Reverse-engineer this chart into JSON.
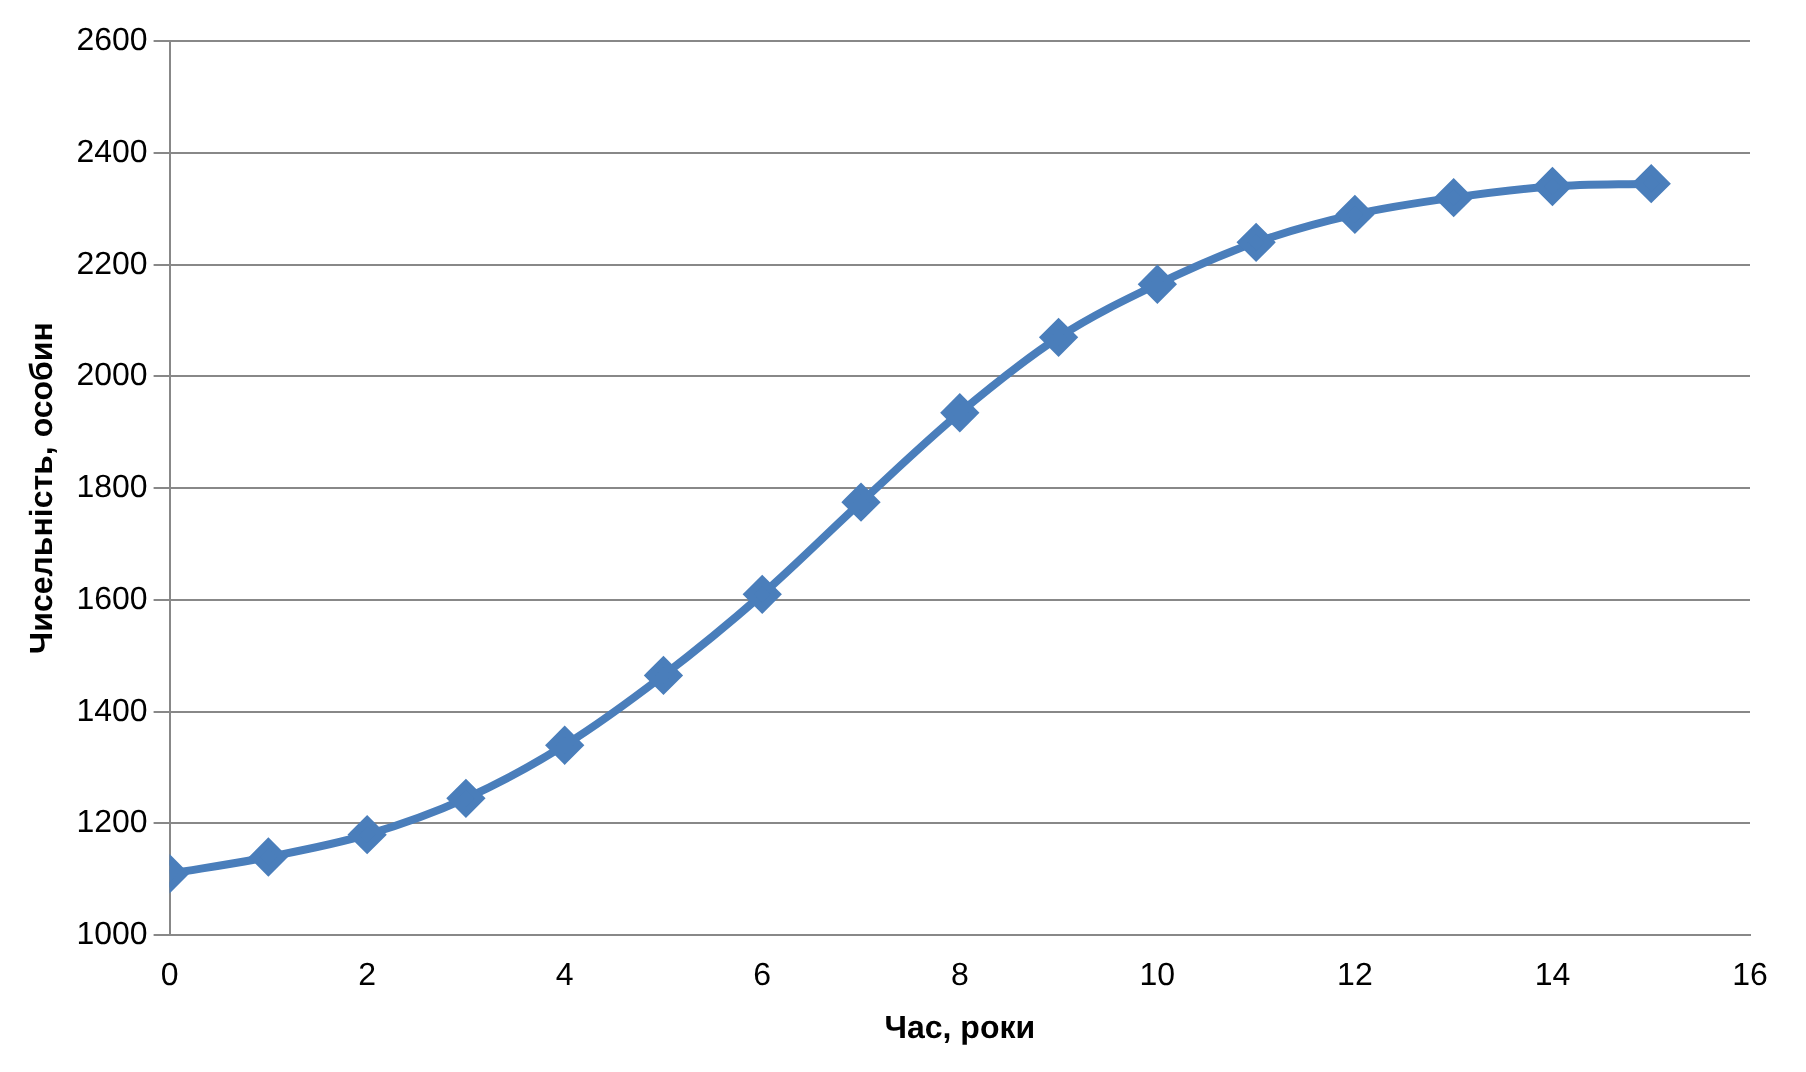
{
  "chart_data": {
    "type": "line",
    "xlabel": "Час, роки",
    "ylabel": "Чисельність, особин",
    "x": [
      0,
      1,
      2,
      3,
      4,
      5,
      6,
      7,
      8,
      9,
      10,
      11,
      12,
      13,
      14,
      15
    ],
    "series": [
      {
        "color": "#4a7ebb",
        "values": [
          1110,
          1140,
          1180,
          1245,
          1340,
          1465,
          1610,
          1775,
          1935,
          2070,
          2165,
          2240,
          2290,
          2320,
          2340,
          2345
        ]
      }
    ],
    "xlim": [
      0,
      16
    ],
    "xticks": [
      0,
      2,
      4,
      6,
      8,
      10,
      12,
      14,
      16
    ],
    "ylim": [
      1000,
      2600
    ],
    "yticks": [
      1000,
      1200,
      1400,
      1600,
      1800,
      2000,
      2200,
      2400,
      2600
    ],
    "grid": "y",
    "legend": false,
    "marker": "diamond",
    "line_style": "solid"
  }
}
